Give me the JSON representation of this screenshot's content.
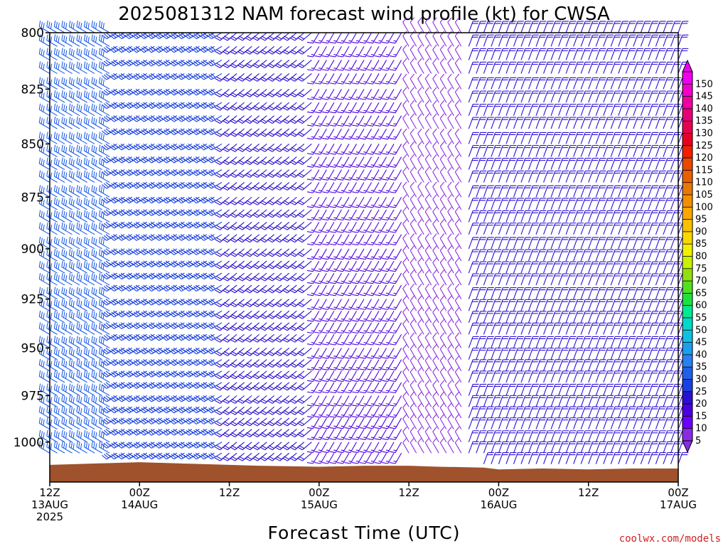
{
  "chart_data": {
    "type": "wind-barbs",
    "title": "2025081312 NAM forecast wind profile (kt) for CWSA",
    "xlabel": "Forecast Time (UTC)",
    "ylabel": "",
    "credit": "coolwx.com/models",
    "y_ticks": [
      "800",
      "825",
      "850",
      "875",
      "900",
      "925",
      "950",
      "975",
      "1000"
    ],
    "y_tick_values": [
      800,
      825,
      850,
      875,
      900,
      925,
      950,
      975,
      1000
    ],
    "ylim": [
      800,
      1022
    ],
    "y_scale": "log-pressure",
    "x_range_hours": [
      0,
      84
    ],
    "x_ticks": [
      {
        "hour": 0,
        "line1": "12Z",
        "line2": "13AUG",
        "line3": "2025"
      },
      {
        "hour": 12,
        "line1": "00Z",
        "line2": "14AUG",
        "line3": ""
      },
      {
        "hour": 24,
        "line1": "12Z",
        "line2": "",
        "line3": ""
      },
      {
        "hour": 36,
        "line1": "00Z",
        "line2": "15AUG",
        "line3": ""
      },
      {
        "hour": 48,
        "line1": "12Z",
        "line2": "",
        "line3": ""
      },
      {
        "hour": 60,
        "line1": "00Z",
        "line2": "16AUG",
        "line3": ""
      },
      {
        "hour": 72,
        "line1": "12Z",
        "line2": "",
        "line3": ""
      },
      {
        "hour": 84,
        "line1": "00Z",
        "line2": "17AUG",
        "line3": ""
      }
    ],
    "colorbar": {
      "labels": [
        "5",
        "10",
        "15",
        "20",
        "25",
        "30",
        "35",
        "40",
        "45",
        "50",
        "55",
        "60",
        "65",
        "70",
        "75",
        "80",
        "85",
        "90",
        "95",
        "100",
        "105",
        "110",
        "115",
        "120",
        "125",
        "130",
        "135",
        "140",
        "145",
        "150"
      ],
      "colors": [
        "#8a2be2",
        "#6a00ff",
        "#4b00e0",
        "#2a10d0",
        "#1a40e0",
        "#2060e8",
        "#2a80f0",
        "#1aa0f0",
        "#10c0e0",
        "#00d8c8",
        "#00e890",
        "#20e040",
        "#50e020",
        "#90e010",
        "#c8f000",
        "#f0f000",
        "#f8d800",
        "#f8c000",
        "#f8a800",
        "#f09000",
        "#e87800",
        "#e86000",
        "#e84800",
        "#f02000",
        "#e80020",
        "#e80050",
        "#e80078",
        "#f000a0",
        "#f000c8",
        "#f000f0"
      ]
    },
    "terrain": {
      "color": "#a0522d",
      "surface_pressure_hpa": [
        {
          "hour": 0,
          "p": 1012.5
        },
        {
          "hour": 4,
          "p": 1012.0
        },
        {
          "hour": 8,
          "p": 1011.5
        },
        {
          "hour": 12,
          "p": 1011.0
        },
        {
          "hour": 20,
          "p": 1012.0
        },
        {
          "hour": 28,
          "p": 1013.0
        },
        {
          "hour": 36,
          "p": 1013.5
        },
        {
          "hour": 42,
          "p": 1013.0
        },
        {
          "hour": 48,
          "p": 1013.0
        },
        {
          "hour": 52,
          "p": 1013.5
        },
        {
          "hour": 58,
          "p": 1014.0
        },
        {
          "hour": 60,
          "p": 1015.0
        },
        {
          "hour": 66,
          "p": 1014.5
        },
        {
          "hour": 72,
          "p": 1015.0
        },
        {
          "hour": 78,
          "p": 1014.5
        },
        {
          "hour": 84,
          "p": 1014.5
        }
      ]
    },
    "wind_profile": {
      "time_step_hours": 1,
      "pressure_levels_hpa": [
        800,
        806,
        812,
        818,
        825,
        831,
        837,
        843,
        850,
        856,
        862,
        868,
        875,
        881,
        887,
        893,
        900,
        906,
        912,
        918,
        925,
        931,
        937,
        943,
        950,
        956,
        962,
        968,
        975,
        981,
        987,
        993,
        1000,
        1006,
        1012
      ],
      "regimes": [
        {
          "from_hour": 0,
          "to_hour": 9,
          "direction_deg": 300,
          "speed_kt": 30
        },
        {
          "from_hour": 9,
          "to_hour": 24,
          "direction_deg": 240,
          "speed_kt": 28
        },
        {
          "from_hour": 24,
          "to_hour": 36,
          "direction_deg": 230,
          "speed_kt": 22
        },
        {
          "from_hour": 36,
          "to_hour": 48,
          "direction_deg": 210,
          "speed_kt": 15
        },
        {
          "from_hour": 48,
          "to_hour": 56,
          "direction_deg": 330,
          "speed_kt": 8
        },
        {
          "from_hour": 56,
          "to_hour": 84,
          "direction_deg": 20,
          "speed_kt": 20
        }
      ]
    }
  }
}
